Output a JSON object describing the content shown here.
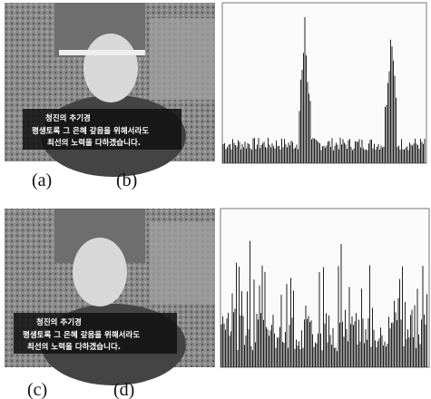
{
  "figure": {
    "top": {
      "image_label": "(a)",
      "histogram_label": "(b)",
      "subtitle": [
        "청진의 추기경",
        "평생토록 그 은혜 갚음을 위해서라도",
        "최선의 노력을 다하겠습니다."
      ]
    },
    "bottom": {
      "image_label": "(c)",
      "histogram_label": "(d)",
      "subtitle": [
        "청진의 추기경",
        "평생토록 그 은혜 갚음을 위해서라도",
        "최선의 노력을 다하겠습니다."
      ]
    }
  }
}
